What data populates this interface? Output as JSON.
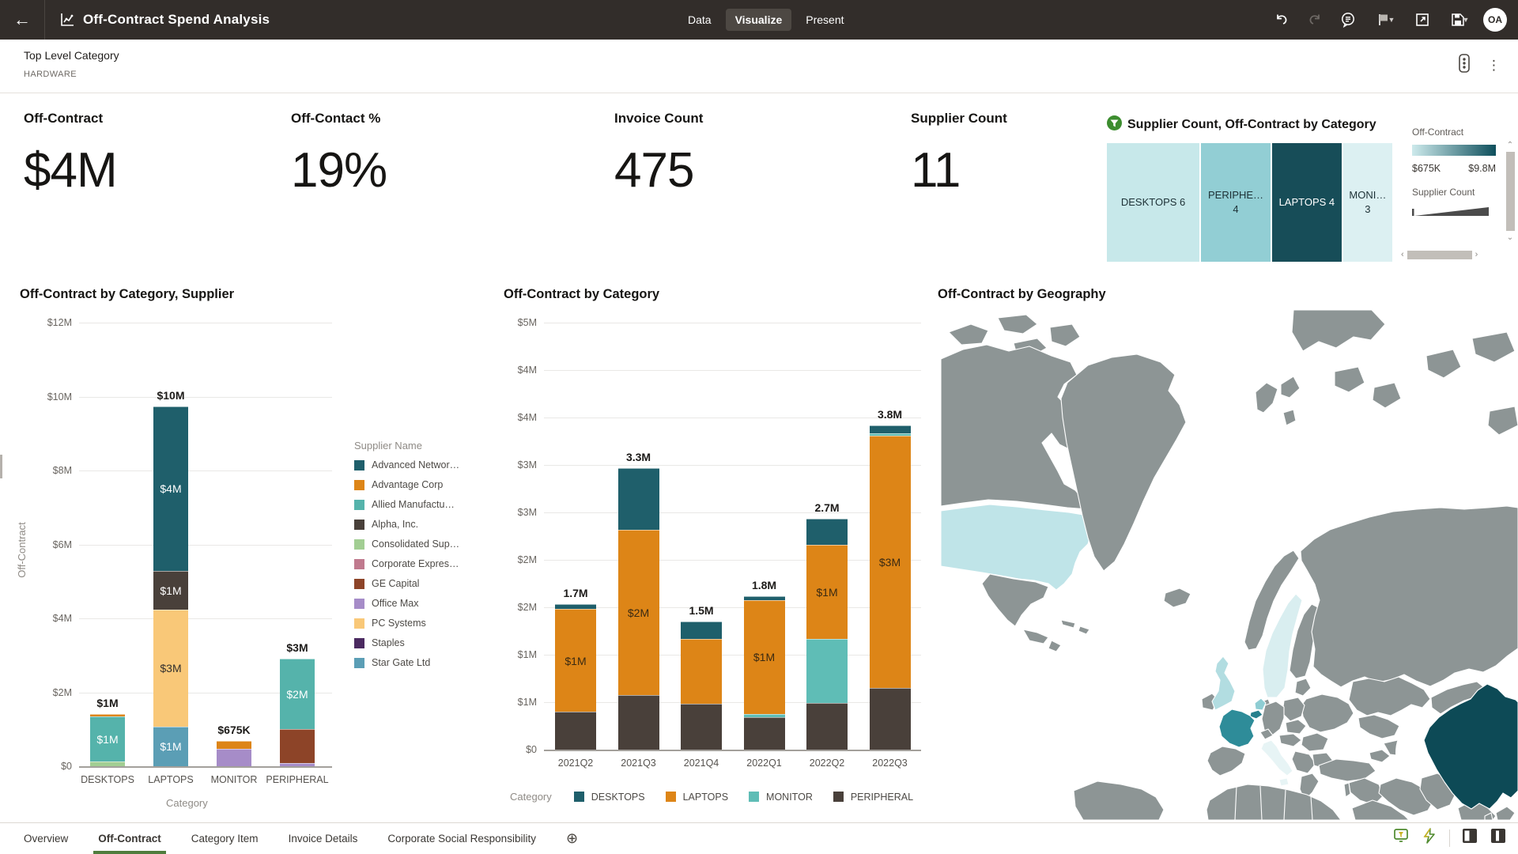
{
  "theme": {
    "header_bg": "#322d2a",
    "active_tab_bg": "#4d4843",
    "accent_green": "#3c8d2f",
    "tab_underline": "#4f7d3d"
  },
  "header": {
    "back_icon": "←",
    "title": "Off-Contract Spend Analysis",
    "tabs": [
      {
        "label": "Data",
        "active": false
      },
      {
        "label": "Visualize",
        "active": true
      },
      {
        "label": "Present",
        "active": false
      }
    ],
    "icons": [
      "undo-icon",
      "redo-icon",
      "insights-icon",
      "comment-icon",
      "open-window-icon",
      "save-icon"
    ],
    "avatar_initials": "OA"
  },
  "filter_bar": {
    "label": "Top Level Category",
    "value": "HARDWARE",
    "menu_icon": "⋮"
  },
  "kpis": [
    {
      "label": "Off-Contract",
      "value": "$4M",
      "x": 30
    },
    {
      "label": "Off-Contact %",
      "value": "19%",
      "x": 368
    },
    {
      "label": "Invoice Count",
      "value": "475",
      "x": 777
    },
    {
      "label": "Supplier Count",
      "value": "11",
      "x": 1152
    }
  ],
  "chart_data": [
    {
      "type": "treemap",
      "title": "Supplier Count, Off-Contract by Category",
      "filtered": true,
      "tiles": [
        {
          "lines": [
            "DESKTOPS 6"
          ],
          "category": "DESKTOPS",
          "supplier_count": 6,
          "color": "#c7e8ea",
          "text_color": "#1d3136",
          "width_pct": 32
        },
        {
          "lines": [
            "PERIPHE…",
            "4"
          ],
          "category": "PERIPHERAL",
          "supplier_count": 4,
          "color": "#92ced4",
          "text_color": "#1d3136",
          "width_pct": 24
        },
        {
          "lines": [
            "LAPTOPS 4"
          ],
          "category": "LAPTOPS",
          "supplier_count": 4,
          "color": "#174d58",
          "text_color": "#ffffff",
          "width_pct": 24
        },
        {
          "lines": [
            "MONI…",
            "3"
          ],
          "category": "MONITOR",
          "supplier_count": 3,
          "color": "#dcf0f2",
          "text_color": "#1d3136",
          "width_pct": 17
        }
      ],
      "legend": {
        "measure_label": "Off-Contract",
        "gradient": [
          "#cdeaec",
          "#0e4f5c"
        ],
        "min": "$675K",
        "max": "$9.8M",
        "size_label": "Supplier Count"
      }
    },
    {
      "type": "bar-stacked",
      "title": "Off-Contract by Category, Supplier",
      "ylabel": "Off-Contract",
      "xlabel": "Category",
      "ylim_m": [
        0,
        12
      ],
      "yticks": [
        "$12M",
        "$10M",
        "$8M",
        "$6M",
        "$4M",
        "$2M",
        "$0"
      ],
      "legend_title": "Supplier Name",
      "suppliers": [
        {
          "name": "Advanced Networ…",
          "color": "#1f5f6b"
        },
        {
          "name": "Advantage Corp",
          "color": "#dd8517"
        },
        {
          "name": "Allied Manufactu…",
          "color": "#55b3ab"
        },
        {
          "name": "Alpha, Inc.",
          "color": "#49403a"
        },
        {
          "name": "Consolidated Sup…",
          "color": "#a2ce93"
        },
        {
          "name": "Corporate Expres…",
          "color": "#c07a8e"
        },
        {
          "name": "GE Capital",
          "color": "#8d4428"
        },
        {
          "name": "Office Max",
          "color": "#a68cc8"
        },
        {
          "name": "PC Systems",
          "color": "#f9c878"
        },
        {
          "name": "Staples",
          "color": "#4b2a60"
        },
        {
          "name": "Star Gate Ltd",
          "color": "#5b9eb5"
        }
      ],
      "bars": [
        {
          "category": "DESKTOPS",
          "total_label": "$1M",
          "segments": [
            {
              "name": "Consolidated Sup…",
              "value_m": 0.12
            },
            {
              "name": "Allied Manufactu…",
              "value_m": 1.22,
              "label": "$1M",
              "label_color": "#ffffff"
            },
            {
              "name": "Advantage Corp",
              "value_m": 0.07
            }
          ]
        },
        {
          "category": "LAPTOPS",
          "total_label": "$10M",
          "segments": [
            {
              "name": "Star Gate Ltd",
              "value_m": 1.07,
              "label": "$1M",
              "label_color": "#ffffff"
            },
            {
              "name": "PC Systems",
              "value_m": 3.17,
              "label": "$3M",
              "label_color": "#33302e"
            },
            {
              "name": "Alpha, Inc.",
              "value_m": 1.05,
              "label": "$1M",
              "label_color": "#ffffff"
            },
            {
              "name": "Advanced Networ…",
              "value_m": 4.45,
              "label": "$4M",
              "label_color": "#ffffff"
            }
          ]
        },
        {
          "category": "MONITOR",
          "total_label": "$675K",
          "segments": [
            {
              "name": "Office Max",
              "value_m": 0.48
            },
            {
              "name": "Advantage Corp",
              "value_m": 0.2
            }
          ]
        },
        {
          "category": "PERIPHERAL",
          "total_label": "$3M",
          "segments": [
            {
              "name": "Office Max",
              "value_m": 0.09
            },
            {
              "name": "GE Capital",
              "value_m": 0.92
            },
            {
              "name": "Allied Manufactu…",
              "value_m": 1.89,
              "label": "$2M",
              "label_color": "#ffffff"
            }
          ]
        }
      ]
    },
    {
      "type": "bar-stacked",
      "title": "Off-Contract by Category",
      "legend_label": "Category",
      "ylim_m": [
        0,
        5
      ],
      "yticks": [
        "$5M",
        "$4M",
        "$4M",
        "$3M",
        "$3M",
        "$2M",
        "$2M",
        "$1M",
        "$1M",
        "$0"
      ],
      "categories_legend": [
        {
          "name": "DESKTOPS",
          "color": "#1f5f6b"
        },
        {
          "name": "LAPTOPS",
          "color": "#dd8517"
        },
        {
          "name": "MONITOR",
          "color": "#5fbdb6"
        },
        {
          "name": "PERIPHERAL",
          "color": "#49403a"
        }
      ],
      "bars": [
        {
          "category": "2021Q2",
          "total_label": "1.7M",
          "segments": [
            {
              "name": "PERIPHERAL",
              "value_m": 0.44
            },
            {
              "name": "LAPTOPS",
              "value_m": 1.21,
              "label": "$1M",
              "label_color": "#3a2a12"
            },
            {
              "name": "DESKTOPS",
              "value_m": 0.05
            }
          ]
        },
        {
          "category": "2021Q3",
          "total_label": "3.3M",
          "segments": [
            {
              "name": "PERIPHERAL",
              "value_m": 0.64
            },
            {
              "name": "LAPTOPS",
              "value_m": 1.93,
              "label": "$2M",
              "label_color": "#3a2a12"
            },
            {
              "name": "DESKTOPS",
              "value_m": 0.73
            }
          ]
        },
        {
          "category": "2021Q4",
          "total_label": "1.5M",
          "segments": [
            {
              "name": "PERIPHERAL",
              "value_m": 0.54
            },
            {
              "name": "LAPTOPS",
              "value_m": 0.76
            },
            {
              "name": "DESKTOPS",
              "value_m": 0.2
            }
          ]
        },
        {
          "category": "2022Q1",
          "total_label": "1.8M",
          "segments": [
            {
              "name": "PERIPHERAL",
              "value_m": 0.38
            },
            {
              "name": "MONITOR",
              "value_m": 0.04
            },
            {
              "name": "LAPTOPS",
              "value_m": 1.33,
              "label": "$1M",
              "label_color": "#3a2a12"
            },
            {
              "name": "DESKTOPS",
              "value_m": 0.05
            }
          ]
        },
        {
          "category": "2022Q2",
          "total_label": "2.7M",
          "segments": [
            {
              "name": "PERIPHERAL",
              "value_m": 0.55
            },
            {
              "name": "MONITOR",
              "value_m": 0.75
            },
            {
              "name": "LAPTOPS",
              "value_m": 1.1,
              "label": "$1M",
              "label_color": "#3a2a12"
            },
            {
              "name": "DESKTOPS",
              "value_m": 0.3
            }
          ]
        },
        {
          "category": "2022Q3",
          "total_label": "3.8M",
          "segments": [
            {
              "name": "PERIPHERAL",
              "value_m": 0.72
            },
            {
              "name": "LAPTOPS",
              "value_m": 2.96,
              "label": "$3M",
              "label_color": "#3a2a12"
            },
            {
              "name": "MONITOR",
              "value_m": 0.02
            },
            {
              "name": "DESKTOPS",
              "value_m": 0.1
            }
          ]
        }
      ]
    },
    {
      "type": "choropleth",
      "title": "Off-Contract by Geography",
      "base_color": "#8d9595",
      "countries": {
        "united-states": "#bfe4e8",
        "united-kingdom": "#b2dde1",
        "sweden": "#d9eef0",
        "netherlands": "#8ecdd3",
        "belgium": "#27808d",
        "france": "#2e8c99",
        "italy": "#e7f4f5",
        "china": "#0d4a56"
      }
    }
  ],
  "bottom_bar": {
    "tabs": [
      {
        "label": "Overview",
        "active": false
      },
      {
        "label": "Off-Contract",
        "active": true
      },
      {
        "label": "Category Item",
        "active": false
      },
      {
        "label": "Invoice Details",
        "active": false
      },
      {
        "label": "Corporate Social Responsibility",
        "active": false
      }
    ],
    "add_icon": "⊕",
    "right_icons": [
      "canvas-filter-icon",
      "auto-refresh-icon",
      "panel-left-icon",
      "panel-split-icon"
    ]
  }
}
